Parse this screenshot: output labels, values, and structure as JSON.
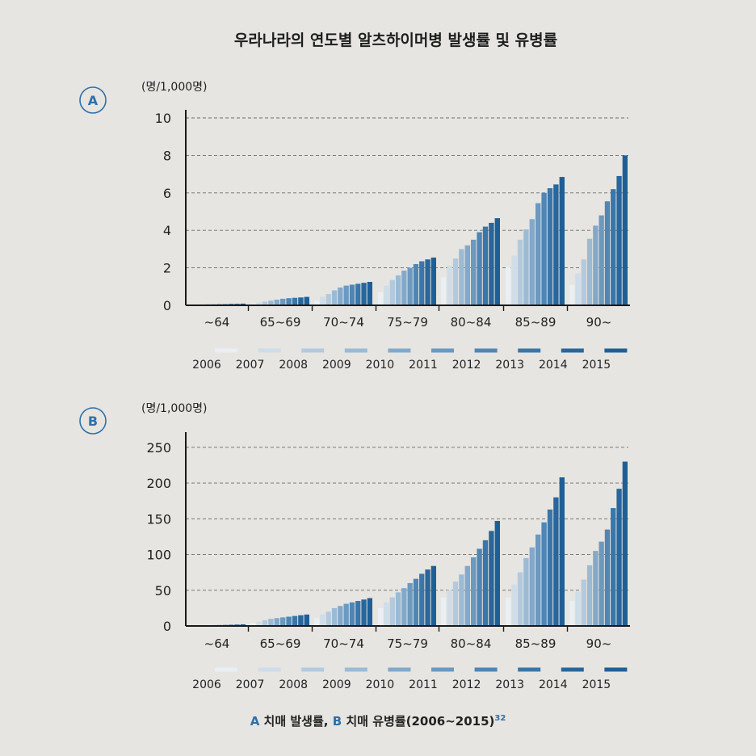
{
  "title": "우라나라의 연도별 알츠하이머병 발생률 및 유병률",
  "caption": {
    "a_letter": "A",
    "a_text": "치매 발생률,",
    "b_letter": "B",
    "b_text": "치매 유병률(2006~2015)",
    "ref": "32"
  },
  "legend": {
    "years": [
      "2006",
      "2007",
      "2008",
      "2009",
      "2010",
      "2011",
      "2012",
      "2013",
      "2014",
      "2015"
    ],
    "colors": [
      "#e9eff4",
      "#cddde9",
      "#b3cade",
      "#9bbbd5",
      "#82a9cb",
      "#6a99c1",
      "#4f86b5",
      "#3a76a9",
      "#28669c",
      "#1f5f97"
    ]
  },
  "chart_data": [
    {
      "type": "bar",
      "panel": "A",
      "unit_label": "(명/1,000명)",
      "categories": [
        "~64",
        "65~69",
        "70~74",
        "75~79",
        "80~84",
        "85~89",
        "90~"
      ],
      "years": [
        "2006",
        "2007",
        "2008",
        "2009",
        "2010",
        "2011",
        "2012",
        "2013",
        "2014",
        "2015"
      ],
      "yticks": [
        0,
        2,
        4,
        6,
        8,
        10
      ],
      "ylim": [
        0,
        10
      ],
      "grid": true,
      "values": [
        [
          0.03,
          0.04,
          0.05,
          0.06,
          0.06,
          0.07,
          0.07,
          0.08,
          0.08,
          0.09
        ],
        [
          0.1,
          0.15,
          0.2,
          0.25,
          0.3,
          0.35,
          0.38,
          0.4,
          0.42,
          0.45
        ],
        [
          0.25,
          0.45,
          0.6,
          0.8,
          0.95,
          1.05,
          1.1,
          1.15,
          1.2,
          1.25
        ],
        [
          0.7,
          1.05,
          1.35,
          1.6,
          1.85,
          2.0,
          2.2,
          2.35,
          2.45,
          2.55
        ],
        [
          1.5,
          2.1,
          2.5,
          3.0,
          3.2,
          3.5,
          3.9,
          4.2,
          4.4,
          4.65
        ],
        [
          2.05,
          2.65,
          3.5,
          4.05,
          4.6,
          5.45,
          6.0,
          6.25,
          6.45,
          6.85
        ],
        [
          1.1,
          1.7,
          2.45,
          3.55,
          4.25,
          4.8,
          5.55,
          6.2,
          6.9,
          8.0
        ]
      ]
    },
    {
      "type": "bar",
      "panel": "B",
      "unit_label": "(명/1,000명)",
      "categories": [
        "~64",
        "65~69",
        "70~74",
        "75~79",
        "80~84",
        "85~89",
        "90~"
      ],
      "years": [
        "2006",
        "2007",
        "2008",
        "2009",
        "2010",
        "2011",
        "2012",
        "2013",
        "2014",
        "2015"
      ],
      "yticks": [
        0,
        50,
        100,
        150,
        200,
        250
      ],
      "ylim": [
        0,
        260
      ],
      "grid": true,
      "values": [
        [
          0.5,
          0.7,
          0.9,
          1.0,
          1.2,
          1.4,
          1.6,
          1.8,
          2.0,
          2.3
        ],
        [
          4,
          6,
          8,
          10,
          11,
          12,
          13,
          14,
          15,
          16
        ],
        [
          11,
          16,
          20,
          25,
          28,
          31,
          33,
          35,
          37,
          39
        ],
        [
          25,
          33,
          40,
          47,
          53,
          60,
          66,
          73,
          79,
          84
        ],
        [
          40,
          50,
          62,
          72,
          84,
          96,
          108,
          120,
          133,
          147
        ],
        [
          40,
          58,
          75,
          95,
          110,
          128,
          145,
          163,
          180,
          208
        ],
        [
          35,
          48,
          65,
          85,
          105,
          118,
          135,
          165,
          192,
          230
        ]
      ]
    }
  ]
}
